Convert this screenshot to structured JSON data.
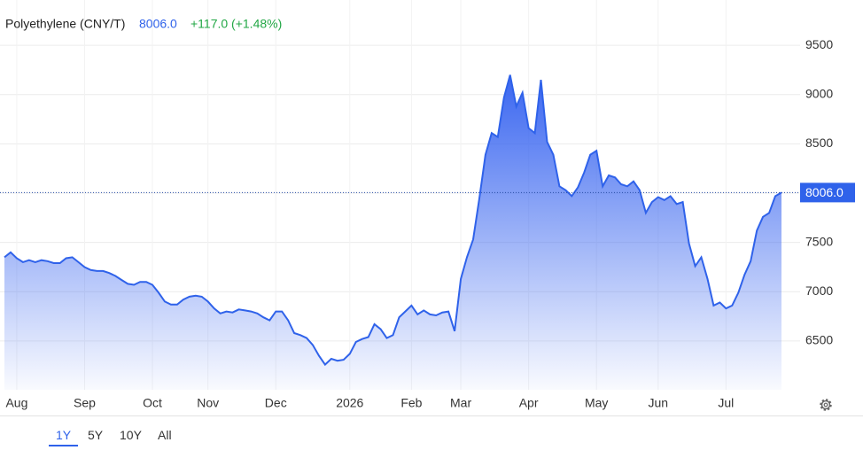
{
  "chart_data": {
    "type": "area",
    "title": "Polyethylene (CNY/T)",
    "price_label": "8006.0",
    "change_label": "+117.0 (+1.48%)",
    "color": "#2f62ea",
    "change_color": "#22a745",
    "grid": true,
    "categories": [
      null,
      null,
      "Aug",
      null,
      null,
      null,
      null,
      null,
      null,
      null,
      null,
      null,
      null,
      "Sep",
      null,
      null,
      null,
      null,
      null,
      null,
      null,
      null,
      null,
      null,
      "Oct",
      null,
      null,
      null,
      null,
      null,
      null,
      null,
      null,
      "Nov",
      null,
      null,
      null,
      null,
      null,
      null,
      null,
      null,
      null,
      null,
      "Dec",
      null,
      null,
      null,
      null,
      null,
      null,
      null,
      null,
      null,
      null,
      null,
      "2026",
      null,
      null,
      null,
      null,
      null,
      null,
      null,
      null,
      null,
      "Feb",
      null,
      null,
      null,
      null,
      null,
      null,
      null,
      "Mar",
      null,
      null,
      null,
      null,
      null,
      null,
      null,
      null,
      null,
      null,
      "Apr",
      null,
      null,
      null,
      null,
      null,
      null,
      null,
      null,
      null,
      null,
      "May",
      null,
      null,
      null,
      null,
      null,
      null,
      null,
      null,
      null,
      "Jun",
      null,
      null,
      null,
      null,
      null,
      null,
      null,
      null,
      null,
      null,
      "Jul",
      null,
      null,
      null,
      null,
      null,
      null,
      null,
      null,
      null
    ],
    "values": [
      7350,
      7400,
      7340,
      7300,
      7320,
      7300,
      7320,
      7310,
      7290,
      7290,
      7340,
      7350,
      7300,
      7250,
      7220,
      7210,
      7210,
      7190,
      7160,
      7120,
      7080,
      7070,
      7100,
      7100,
      7070,
      6990,
      6900,
      6870,
      6870,
      6920,
      6950,
      6960,
      6950,
      6900,
      6830,
      6780,
      6800,
      6790,
      6820,
      6810,
      6800,
      6780,
      6740,
      6710,
      6800,
      6800,
      6710,
      6580,
      6560,
      6530,
      6460,
      6350,
      6260,
      6320,
      6300,
      6310,
      6370,
      6490,
      6520,
      6540,
      6670,
      6620,
      6530,
      6560,
      6740,
      6800,
      6860,
      6770,
      6810,
      6770,
      6760,
      6790,
      6800,
      6600,
      7130,
      7350,
      7530,
      7940,
      8390,
      8610,
      8570,
      8970,
      9200,
      8880,
      9020,
      8660,
      8610,
      9150,
      8520,
      8390,
      8070,
      8030,
      7970,
      8060,
      8210,
      8390,
      8430,
      8070,
      8180,
      8160,
      8090,
      8070,
      8120,
      8030,
      7800,
      7910,
      7960,
      7930,
      7970,
      7890,
      7910,
      7490,
      7260,
      7350,
      7130,
      6860,
      6890,
      6830,
      6860,
      6990,
      7170,
      7310,
      7620,
      7760,
      7800,
      7970,
      8006
    ],
    "ylim": [
      6005,
      9960
    ],
    "yticks": [
      6500,
      7000,
      7500,
      8000,
      8500,
      9000,
      9500
    ]
  },
  "range_buttons": [
    "1Y",
    "5Y",
    "10Y",
    "All"
  ],
  "selected_range": 0
}
